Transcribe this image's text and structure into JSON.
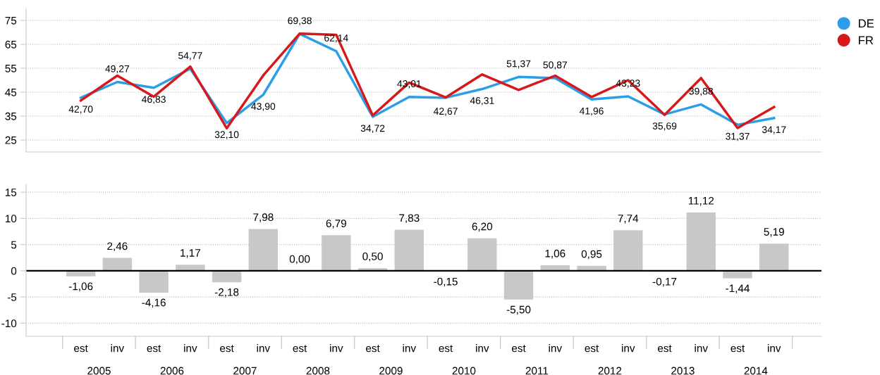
{
  "chart_data": [
    {
      "type": "line",
      "categories": [
        null,
        null,
        null,
        null,
        null,
        null,
        null,
        null,
        null,
        null,
        null,
        null,
        null,
        null,
        null,
        null,
        null,
        null,
        null,
        null
      ],
      "ylim": [
        20,
        80
      ],
      "yticks": [
        25,
        35,
        45,
        55,
        65,
        75
      ],
      "grid": "y",
      "legend": "top right",
      "marker": "none",
      "line_style": "solid",
      "tick_labels": "y",
      "series": [
        {
          "name": "DE",
          "color": "#2a9fe8",
          "values": [
            42.7,
            49.27,
            46.83,
            54.77,
            32.1,
            43.9,
            69.38,
            62.14,
            34.72,
            43.01,
            42.67,
            46.31,
            51.37,
            50.87,
            41.96,
            43.23,
            35.69,
            39.88,
            31.37,
            34.17
          ],
          "value_labels": [
            "42,70",
            "49,27",
            "46,83",
            "54,77",
            "32,10",
            "43,90",
            "69,38",
            "62,14",
            "34,72",
            "43,01",
            "42,67",
            "46,31",
            "51,37",
            "50,87",
            "41,96",
            "43,23",
            "35,69",
            "39,88",
            "31,37",
            "34,17"
          ]
        },
        {
          "name": "FR",
          "color": "#d7191c",
          "values": [
            41.5,
            51.9,
            43.1,
            55.7,
            29.9,
            52.0,
            69.5,
            69.0,
            35.3,
            49.0,
            42.8,
            52.4,
            45.9,
            51.9,
            43.0,
            50.0,
            35.5,
            50.9,
            30.0,
            38.8
          ]
        }
      ]
    },
    {
      "type": "bar",
      "categories": [
        "est",
        "inv",
        "est",
        "inv",
        "est",
        "inv",
        "est",
        "inv",
        "est",
        "inv",
        "est",
        "inv",
        "est",
        "inv",
        "est",
        "inv",
        "est",
        "inv",
        "est",
        "inv"
      ],
      "ylim": [
        -12.5,
        16.5
      ],
      "yticks": [
        -10,
        -5,
        0,
        5,
        10,
        15
      ],
      "grid": "y",
      "color": "#c8c8c8",
      "values": [
        -1.06,
        2.46,
        -4.16,
        1.17,
        -2.18,
        7.98,
        0.0,
        6.79,
        0.5,
        7.83,
        -0.15,
        6.2,
        -5.5,
        1.06,
        0.95,
        7.74,
        -0.17,
        11.12,
        -1.44,
        5.19
      ],
      "value_labels": [
        "-1,06",
        "2,46",
        "-4,16",
        "1,17",
        "-2,18",
        "7,98",
        "0,00",
        "6,79",
        "0,50",
        "7,83",
        "-0,15",
        "6,20",
        "-5,50",
        "1,06",
        "0,95",
        "7,74",
        "-0,17",
        "11,12",
        "-1,44",
        "5,19"
      ],
      "ref_lines": [
        {
          "axis": "y",
          "value": 0,
          "color": "#000000"
        }
      ],
      "annotations": [
        "2005",
        "2006",
        "2007",
        "2008",
        "2009",
        "2010",
        "2011",
        "2012",
        "2013",
        "2014"
      ]
    }
  ]
}
